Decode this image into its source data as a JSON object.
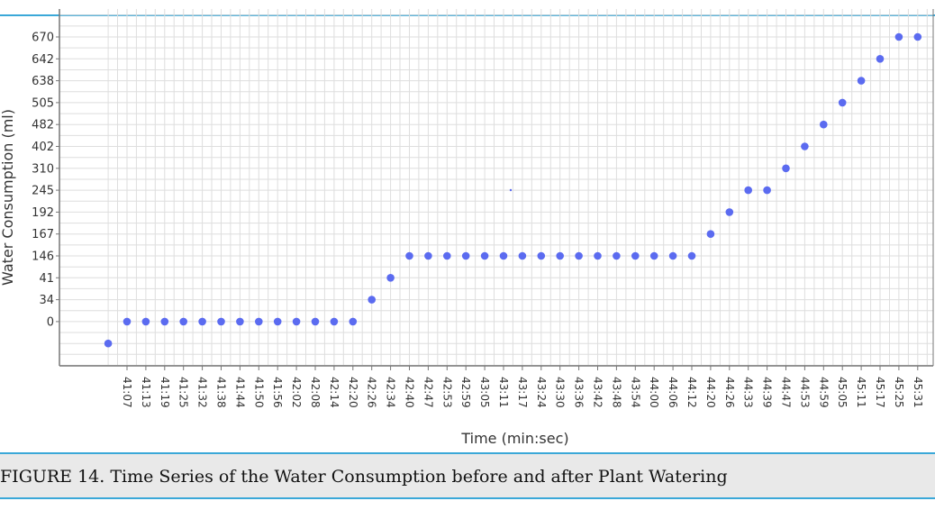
{
  "caption": "FIGURE 14. Time Series of the Water Consumption before and after Plant Watering",
  "chart_data": {
    "type": "scatter",
    "title": "",
    "xlabel": "Time (min:sec)",
    "ylabel": "Water Consumption (ml)",
    "x_tick_labels": [
      "41:07",
      "41:13",
      "41:19",
      "41:25",
      "41:32",
      "41:38",
      "41:44",
      "41:50",
      "41:56",
      "42:02",
      "42:08",
      "42:14",
      "42:20",
      "42:26",
      "42:34",
      "42:40",
      "42:47",
      "42:53",
      "42:59",
      "43:05",
      "43:11",
      "43:17",
      "43:24",
      "43:30",
      "43:36",
      "43:42",
      "43:48",
      "43:54",
      "44:00",
      "44:06",
      "44:12",
      "44:20",
      "44:26",
      "44:33",
      "44:39",
      "44:47",
      "44:53",
      "44:59",
      "45:05",
      "45:11",
      "45:17",
      "45:25",
      "45:31"
    ],
    "y_tick_labels": [
      "0",
      "34",
      "41",
      "146",
      "167",
      "192",
      "245",
      "310",
      "402",
      "482",
      "505",
      "638",
      "642",
      "670"
    ],
    "points": [
      {
        "x": "",
        "y": ""
      },
      {
        "x": "41:07",
        "y": "0"
      },
      {
        "x": "41:13",
        "y": "0"
      },
      {
        "x": "41:19",
        "y": "0"
      },
      {
        "x": "41:25",
        "y": "0"
      },
      {
        "x": "41:32",
        "y": "0"
      },
      {
        "x": "41:38",
        "y": "0"
      },
      {
        "x": "41:44",
        "y": "0"
      },
      {
        "x": "41:50",
        "y": "0"
      },
      {
        "x": "41:56",
        "y": "0"
      },
      {
        "x": "42:02",
        "y": "0"
      },
      {
        "x": "42:08",
        "y": "0"
      },
      {
        "x": "42:14",
        "y": "0"
      },
      {
        "x": "42:20",
        "y": "0"
      },
      {
        "x": "42:26",
        "y": "34"
      },
      {
        "x": "42:34",
        "y": "41"
      },
      {
        "x": "42:40",
        "y": "146"
      },
      {
        "x": "42:47",
        "y": "146"
      },
      {
        "x": "42:53",
        "y": "146"
      },
      {
        "x": "42:59",
        "y": "146"
      },
      {
        "x": "43:05",
        "y": "146"
      },
      {
        "x": "43:11",
        "y": "146"
      },
      {
        "x": "43:17",
        "y": "146"
      },
      {
        "x": "43:24",
        "y": "146"
      },
      {
        "x": "43:30",
        "y": "146"
      },
      {
        "x": "43:36",
        "y": "146"
      },
      {
        "x": "43:42",
        "y": "146"
      },
      {
        "x": "43:48",
        "y": "146"
      },
      {
        "x": "43:54",
        "y": "146"
      },
      {
        "x": "44:00",
        "y": "146"
      },
      {
        "x": "44:06",
        "y": "146"
      },
      {
        "x": "44:12",
        "y": "146"
      },
      {
        "x": "44:20",
        "y": "167"
      },
      {
        "x": "44:26",
        "y": "192"
      },
      {
        "x": "44:33",
        "y": "245"
      },
      {
        "x": "44:39",
        "y": "245"
      },
      {
        "x": "44:47",
        "y": "310"
      },
      {
        "x": "44:53",
        "y": "402"
      },
      {
        "x": "44:59",
        "y": "482"
      },
      {
        "x": "45:05",
        "y": "505"
      },
      {
        "x": "45:11",
        "y": "638"
      },
      {
        "x": "45:17",
        "y": "642"
      },
      {
        "x": "45:25",
        "y": "670"
      },
      {
        "x": "45:31",
        "y": "670"
      }
    ],
    "grid": true,
    "legend": "none",
    "colors": {
      "marker": "#5b6bf0",
      "grid": "#dedede",
      "axis": "#777777",
      "accent_rule": "#3aa8d8",
      "caption_band": "#e9e9e9"
    }
  }
}
